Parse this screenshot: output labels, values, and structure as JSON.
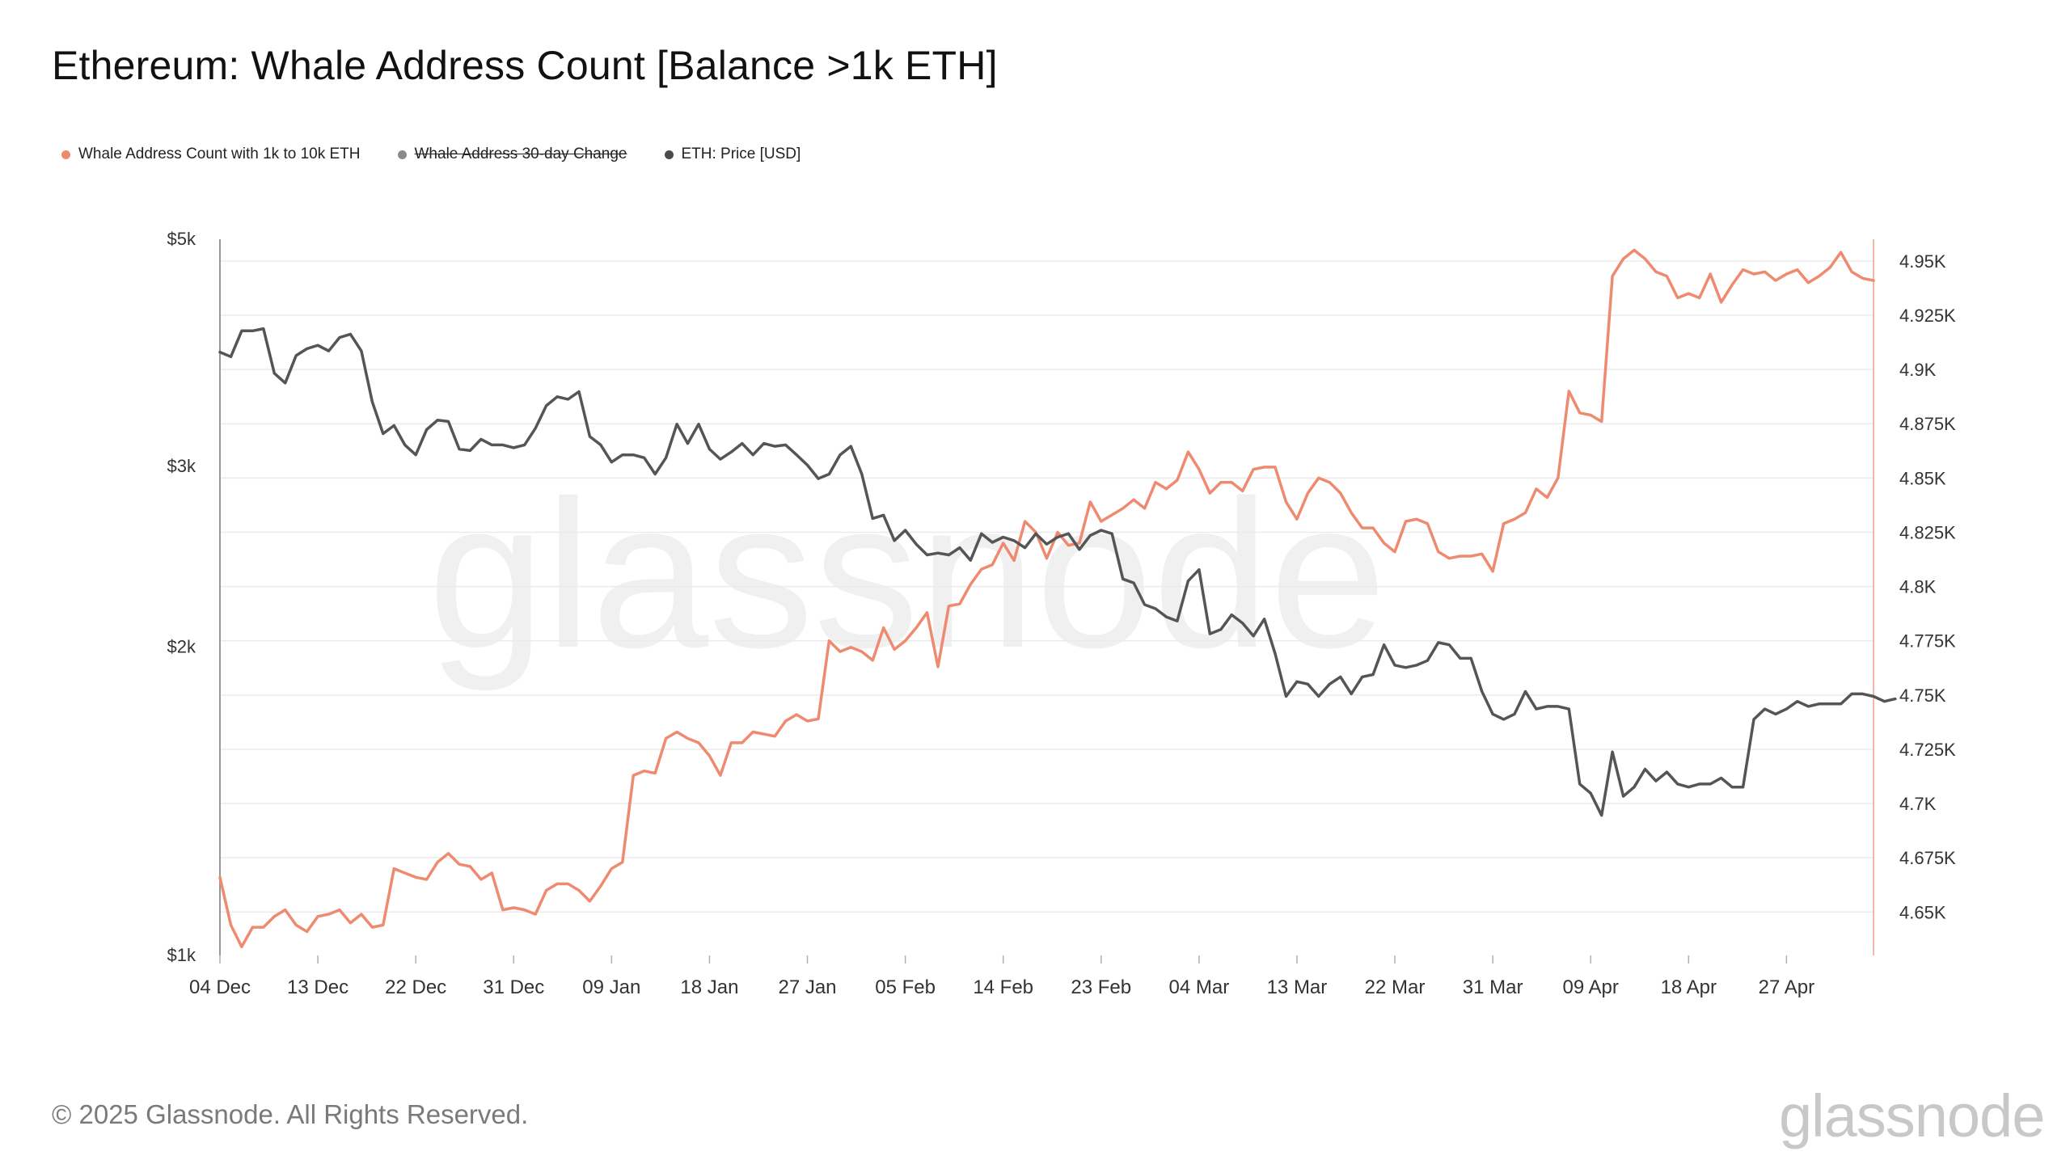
{
  "header": {
    "title": "Ethereum: Whale Address Count [Balance >1k ETH]"
  },
  "legend": [
    {
      "label": "Whale Address Count with 1k to 10k ETH",
      "color": "#ee8a70",
      "enabled": true
    },
    {
      "label": "Whale Address 30-day Change",
      "color": "#8a8a8a",
      "enabled": false
    },
    {
      "label": "ETH: Price [USD]",
      "color": "#4a4a4a",
      "enabled": true
    }
  ],
  "footer": {
    "copyright": "© 2025 Glassnode. All Rights Reserved.",
    "brand": "glassnode"
  },
  "watermark": "glassnode",
  "colors": {
    "whale": "#ee8a70",
    "price": "#555555",
    "grid": "#ebebeb",
    "axis": "#999999",
    "rightAxis": "#f3b8a8"
  },
  "chart_data": {
    "type": "line",
    "title": "Ethereum: Whale Address Count [Balance >1k ETH]",
    "x_labels": [
      "04 Dec",
      "13 Dec",
      "22 Dec",
      "31 Dec",
      "09 Jan",
      "18 Jan",
      "27 Jan",
      "05 Feb",
      "14 Feb",
      "23 Feb",
      "04 Mar",
      "13 Mar",
      "22 Mar",
      "31 Mar",
      "09 Apr",
      "18 Apr",
      "27 Apr"
    ],
    "x_label_day_index": [
      0,
      9,
      18,
      27,
      36,
      45,
      54,
      63,
      72,
      81,
      90,
      99,
      108,
      117,
      126,
      135,
      144
    ],
    "days": 153,
    "y_left": {
      "scale": "log",
      "range": [
        1000,
        5000
      ],
      "ticks": [
        {
          "v": 1000,
          "label": "$1k"
        },
        {
          "v": 2000,
          "label": "$2k"
        },
        {
          "v": 3000,
          "label": "$3k"
        },
        {
          "v": 5000,
          "label": "$5k"
        }
      ]
    },
    "y_right": {
      "scale": "linear",
      "range": [
        4630,
        4960
      ],
      "ticks": [
        {
          "v": 4650,
          "label": "4.65K"
        },
        {
          "v": 4675,
          "label": "4.675K"
        },
        {
          "v": 4700,
          "label": "4.7K"
        },
        {
          "v": 4725,
          "label": "4.725K"
        },
        {
          "v": 4750,
          "label": "4.75K"
        },
        {
          "v": 4775,
          "label": "4.775K"
        },
        {
          "v": 4800,
          "label": "4.8K"
        },
        {
          "v": 4825,
          "label": "4.825K"
        },
        {
          "v": 4850,
          "label": "4.85K"
        },
        {
          "v": 4875,
          "label": "4.875K"
        },
        {
          "v": 4900,
          "label": "4.9K"
        },
        {
          "v": 4925,
          "label": "4.925K"
        },
        {
          "v": 4950,
          "label": "4.95K"
        }
      ]
    },
    "series": [
      {
        "name": "Whale Address Count with 1k to 10k ETH",
        "axis": "right",
        "values": [
          4666,
          4644,
          4634,
          4643,
          4643,
          4648,
          4651,
          4644,
          4641,
          4648,
          4649,
          4651,
          4645,
          4649,
          4643,
          4644,
          4670,
          4668,
          4666,
          4665,
          4673,
          4677,
          4672,
          4671,
          4665,
          4668,
          4651,
          4652,
          4651,
          4649,
          4660,
          4663,
          4663,
          4660,
          4655,
          4662,
          4670,
          4673,
          4713,
          4715,
          4714,
          4730,
          4733,
          4730,
          4728,
          4722,
          4713,
          4728,
          4728,
          4733,
          4732,
          4731,
          4738,
          4741,
          4738,
          4739,
          4775,
          4770,
          4772,
          4770,
          4766,
          4781,
          4771,
          4775,
          4781,
          4788,
          4763,
          4791,
          4792,
          4801,
          4808,
          4810,
          4820,
          4812,
          4830,
          4825,
          4813,
          4825,
          4819,
          4820,
          4839,
          4830,
          4833,
          4836,
          4840,
          4836,
          4848,
          4845,
          4849,
          4862,
          4854,
          4843,
          4848,
          4848,
          4844,
          4854,
          4855,
          4855,
          4839,
          4831,
          4843,
          4850,
          4848,
          4843,
          4834,
          4827,
          4827,
          4820,
          4816,
          4830,
          4831,
          4829,
          4816,
          4813,
          4814,
          4814,
          4815,
          4807,
          4829,
          4831,
          4834,
          4845,
          4841,
          4850,
          4890,
          4880,
          4879,
          4876,
          4943,
          4951,
          4955,
          4951,
          4945,
          4943,
          4933,
          4935,
          4933,
          4944,
          4931,
          4939,
          4946,
          4944,
          4945,
          4941,
          4944,
          4946,
          4940,
          4943,
          4947,
          4954,
          4945,
          4942,
          4941
        ]
      },
      {
        "name": "ETH: Price [USD]",
        "axis": "left",
        "values": [
          3880,
          3840,
          4070,
          4070,
          4090,
          3700,
          3620,
          3850,
          3910,
          3940,
          3890,
          4010,
          4040,
          3890,
          3470,
          3230,
          3290,
          3150,
          3080,
          3260,
          3330,
          3320,
          3120,
          3110,
          3190,
          3150,
          3150,
          3130,
          3150,
          3270,
          3440,
          3510,
          3490,
          3550,
          3210,
          3150,
          3030,
          3080,
          3080,
          3060,
          2950,
          3060,
          3300,
          3160,
          3300,
          3120,
          3050,
          3100,
          3160,
          3080,
          3160,
          3140,
          3150,
          3080,
          3010,
          2920,
          2950,
          3080,
          3140,
          2950,
          2670,
          2690,
          2540,
          2600,
          2520,
          2460,
          2470,
          2460,
          2500,
          2430,
          2580,
          2530,
          2560,
          2540,
          2500,
          2580,
          2520,
          2560,
          2580,
          2490,
          2570,
          2600,
          2580,
          2330,
          2310,
          2200,
          2180,
          2140,
          2120,
          2320,
          2380,
          2060,
          2080,
          2150,
          2110,
          2050,
          2130,
          1970,
          1790,
          1850,
          1840,
          1790,
          1840,
          1870,
          1800,
          1870,
          1880,
          2010,
          1920,
          1910,
          1920,
          1940,
          2020,
          2010,
          1950,
          1950,
          1810,
          1720,
          1700,
          1720,
          1810,
          1740,
          1750,
          1750,
          1740,
          1470,
          1440,
          1370,
          1580,
          1430,
          1460,
          1520,
          1480,
          1510,
          1470,
          1460,
          1470,
          1470,
          1490,
          1460,
          1460,
          1700,
          1740,
          1720,
          1740,
          1770,
          1750,
          1760,
          1760,
          1760,
          1800,
          1800,
          1790,
          1770,
          1780
        ]
      },
      {
        "name": "Whale Address 30-day Change",
        "axis": "none",
        "values": []
      }
    ]
  }
}
